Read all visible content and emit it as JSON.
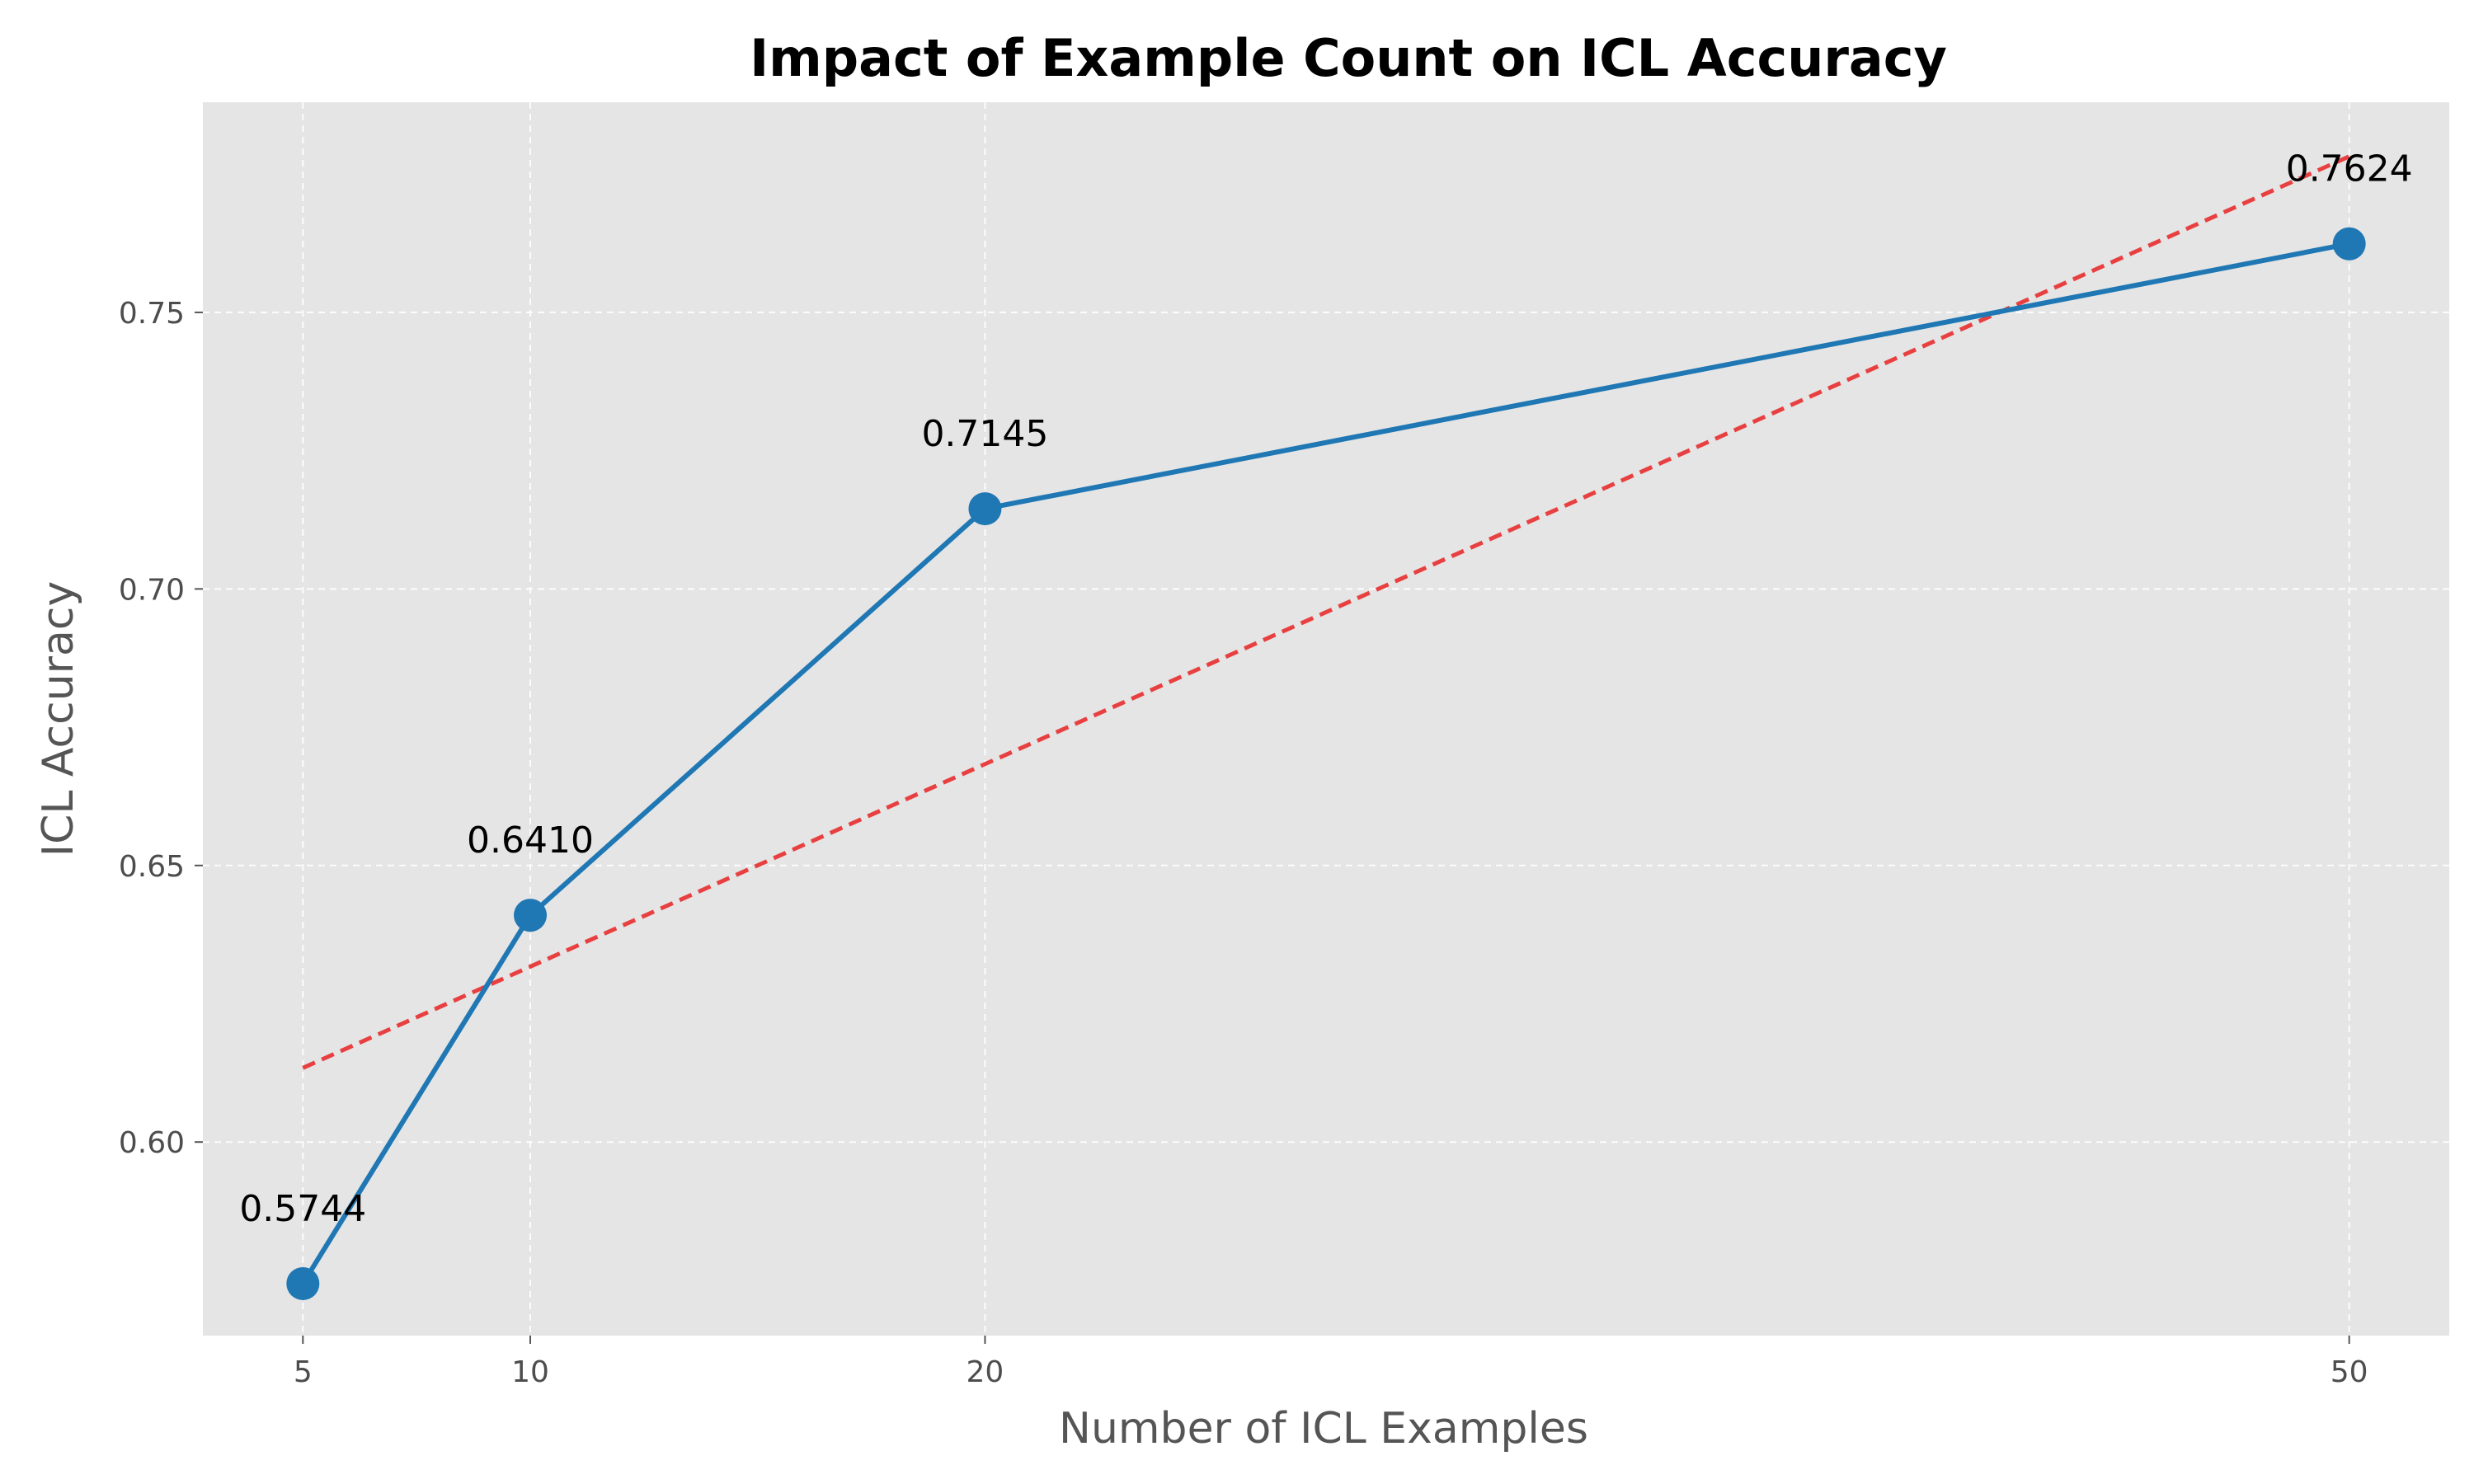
{
  "chart_data": {
    "type": "line",
    "title": "Impact of Example Count on ICL Accuracy",
    "xlabel": "Number of ICL Examples",
    "ylabel": "ICL Accuracy",
    "x": [
      5,
      10,
      20,
      50
    ],
    "xticks": [
      5,
      10,
      20,
      50
    ],
    "yticks": [
      0.6,
      0.65,
      0.7,
      0.75
    ],
    "xlim": [
      2.8,
      52.2
    ],
    "ylim": [
      0.565,
      0.788
    ],
    "grid": true,
    "series": [
      {
        "values": [
          0.5744,
          0.641,
          0.7145,
          0.7624
        ],
        "labels": [
          "0.5744",
          "0.6410",
          "0.7145",
          "0.7624"
        ],
        "color": "#1f77b4",
        "marker": "circle"
      }
    ],
    "trendline": {
      "style": "dashed",
      "color": "#e84040",
      "points": [
        [
          5,
          0.6134
        ],
        [
          50,
          0.7782
        ]
      ]
    },
    "background_color": "#e5e5e5",
    "grid_color": "#ffffff"
  }
}
